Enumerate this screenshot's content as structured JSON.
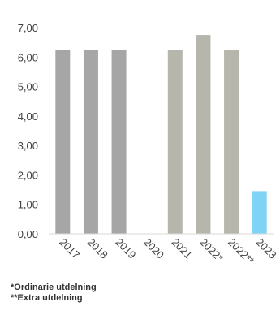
{
  "chart_data": {
    "type": "bar",
    "categories": [
      "2017",
      "2018",
      "2019",
      "2020",
      "2021",
      "2022*",
      "2022**",
      "2023"
    ],
    "values": [
      6.25,
      6.25,
      6.25,
      null,
      6.25,
      6.75,
      6.25,
      1.45
    ],
    "bar_colors": [
      "#a6a6a6",
      "#a6a6a6",
      "#a6a6a6",
      "#a6a6a6",
      "#b7b6ad",
      "#b7b6ad",
      "#b7b6ad",
      "#7fd3f5"
    ],
    "y_tick_labels": [
      "0,00",
      "1,00",
      "2,00",
      "3,00",
      "4,00",
      "5,00",
      "6,00",
      "7,00"
    ],
    "ylim": [
      0,
      7
    ],
    "title": "",
    "xlabel": "",
    "ylabel": "",
    "grid": false,
    "legend": "none"
  },
  "footnotes": {
    "ordinary": "*Ordinarie utdelning",
    "extra": "**Extra utdelning"
  }
}
